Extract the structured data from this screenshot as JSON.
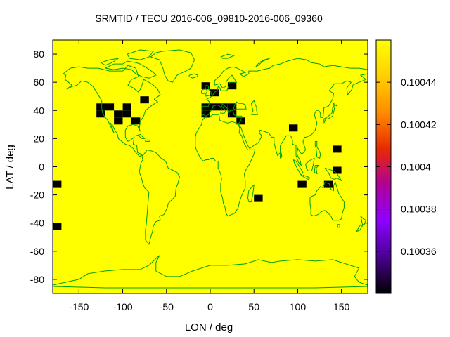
{
  "chart_data": {
    "type": "heatmap",
    "title": "SRMTID / TECU 2016-006_09810-2016-006_09360",
    "xlabel": "LON / deg",
    "ylabel": "LAT / deg",
    "xlim": [
      -180,
      180
    ],
    "ylim": [
      -90,
      90
    ],
    "xticks": [
      -150,
      -100,
      -50,
      0,
      50,
      100,
      150
    ],
    "yticks": [
      -80,
      -60,
      -40,
      -20,
      0,
      20,
      40,
      60,
      80
    ],
    "background_value": 0.10046,
    "background_color": "#ffff00",
    "cell_color": "#000000",
    "coastline_color": "#00a000",
    "colorbar": {
      "range": [
        0.10034,
        0.10046
      ],
      "ticks": [
        0.10036,
        0.10038,
        0.1004,
        0.10042,
        0.10044
      ],
      "tick_labels": [
        "0.10036",
        "0.10038",
        "0.1004",
        "0.10042",
        "0.10044"
      ],
      "colors": [
        "#000000",
        "#4a0090",
        "#8c00ff",
        "#b0009a",
        "#e62a00",
        "#ff8c00",
        "#ffd000",
        "#ffff00"
      ]
    },
    "cell_size_deg": [
      10,
      5
    ],
    "cells": [
      {
        "lon": -180,
        "lat": -15,
        "value": 0.10034
      },
      {
        "lon": -180,
        "lat": -45,
        "value": 0.10034
      },
      {
        "lon": -130,
        "lat": 40,
        "value": 0.10034
      },
      {
        "lon": -130,
        "lat": 35,
        "value": 0.10034
      },
      {
        "lon": -120,
        "lat": 40,
        "value": 0.10034
      },
      {
        "lon": -110,
        "lat": 35,
        "value": 0.10034
      },
      {
        "lon": -110,
        "lat": 30,
        "value": 0.10034
      },
      {
        "lon": -100,
        "lat": 40,
        "value": 0.10034
      },
      {
        "lon": -100,
        "lat": 35,
        "value": 0.10034
      },
      {
        "lon": -90,
        "lat": 30,
        "value": 0.10034
      },
      {
        "lon": -80,
        "lat": 45,
        "value": 0.10034
      },
      {
        "lon": -10,
        "lat": 55,
        "value": 0.10034
      },
      {
        "lon": 0,
        "lat": 50,
        "value": 0.10034
      },
      {
        "lon": 20,
        "lat": 55,
        "value": 0.10034
      },
      {
        "lon": -10,
        "lat": 40,
        "value": 0.10034
      },
      {
        "lon": -10,
        "lat": 35,
        "value": 0.10034
      },
      {
        "lon": 0,
        "lat": 40,
        "value": 0.10034
      },
      {
        "lon": 10,
        "lat": 40,
        "value": 0.10034
      },
      {
        "lon": 20,
        "lat": 40,
        "value": 0.10034
      },
      {
        "lon": 20,
        "lat": 35,
        "value": 0.10034
      },
      {
        "lon": 30,
        "lat": 30,
        "value": 0.10034
      },
      {
        "lon": 90,
        "lat": 25,
        "value": 0.10034
      },
      {
        "lon": 140,
        "lat": 10,
        "value": 0.10034
      },
      {
        "lon": 140,
        "lat": -5,
        "value": 0.10034
      },
      {
        "lon": 100,
        "lat": -15,
        "value": 0.10034
      },
      {
        "lon": 130,
        "lat": -15,
        "value": 0.10034
      },
      {
        "lon": 50,
        "lat": -25,
        "value": 0.10034
      }
    ]
  }
}
